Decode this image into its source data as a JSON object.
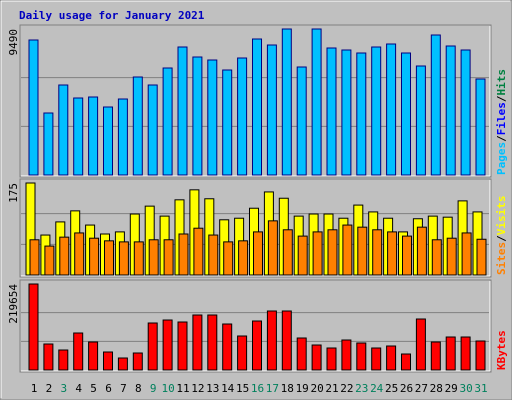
{
  "chart_data": [
    {
      "type": "bar",
      "title": "Daily usage for January 2021",
      "ylim": [
        0,
        9490
      ],
      "yticks": [
        9490
      ],
      "series": [
        {
          "name": "Pages",
          "color": "#00C0FF",
          "values": [
            8775,
            4030,
            5850,
            5005,
            5070,
            4420,
            4940,
            6370,
            5850,
            6955,
            8320,
            7670,
            7475,
            6825,
            7605,
            8840,
            8450,
            9490,
            7020,
            9490,
            8255,
            8125,
            7930,
            8320,
            8515,
            7930,
            7085,
            9100,
            8385,
            8125,
            6240
          ]
        }
      ],
      "other_legend": [
        {
          "name": "Files",
          "color": "#0000FF"
        },
        {
          "name": "Hits",
          "color": "#008040"
        }
      ],
      "legend_separator": "/"
    },
    {
      "type": "bar",
      "ylim": [
        0,
        175
      ],
      "yticks": [
        175
      ],
      "series": [
        {
          "name": "Visits",
          "color": "#FFFF00",
          "values": [
            175,
            76,
            101,
            122,
            95,
            78,
            82,
            116,
            131,
            112,
            143,
            162,
            145,
            105,
            108,
            127,
            158,
            146,
            112,
            116,
            116,
            108,
            133,
            120,
            108,
            82,
            107,
            112,
            110,
            141,
            120
          ]
        },
        {
          "name": "Sites",
          "color": "#FF8000",
          "values": [
            67,
            55,
            72,
            80,
            70,
            65,
            63,
            63,
            67,
            67,
            78,
            89,
            76,
            63,
            65,
            82,
            103,
            86,
            74,
            82,
            86,
            95,
            91,
            86,
            82,
            74,
            91,
            67,
            70,
            80,
            68
          ]
        }
      ],
      "legend_separator": "/"
    },
    {
      "type": "bar",
      "ylim": [
        0,
        219654
      ],
      "yticks": [
        219654
      ],
      "series": [
        {
          "name": "KBytes",
          "color": "#FF0000",
          "values": [
            219654,
            66400,
            51080,
            94500,
            71510,
            45970,
            30650,
            43420,
            120040,
            127700,
            122590,
            140470,
            140470,
            117480,
            86840,
            125150,
            150690,
            150690,
            81730,
            63850,
            56190,
            76620,
            68960,
            56190,
            61300,
            40860,
            130250,
            71510,
            84280,
            84280,
            74070
          ]
        }
      ],
      "categories": [
        "1",
        "2",
        "3",
        "4",
        "5",
        "6",
        "7",
        "8",
        "9",
        "10",
        "11",
        "12",
        "13",
        "14",
        "15",
        "16",
        "17",
        "18",
        "19",
        "20",
        "21",
        "22",
        "23",
        "24",
        "25",
        "26",
        "27",
        "28",
        "29",
        "30",
        "31"
      ],
      "weekend": [
        2,
        8,
        9,
        15,
        16,
        22,
        23,
        29,
        30
      ],
      "weekday_color": "#000000",
      "weekend_color": "#00805C"
    }
  ]
}
